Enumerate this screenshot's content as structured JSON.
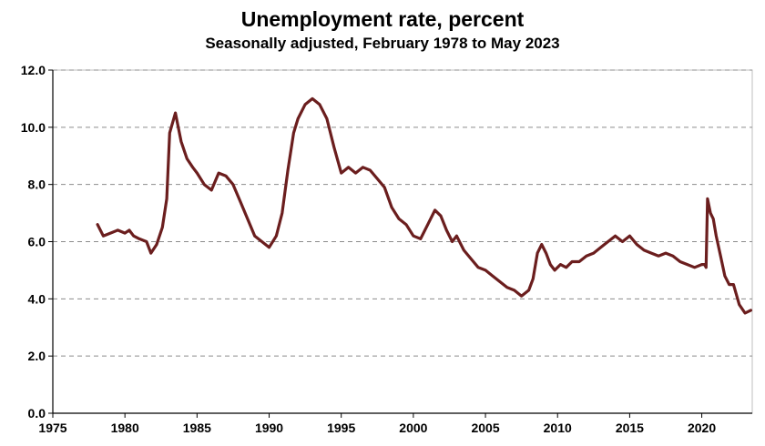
{
  "chart_data": {
    "type": "line",
    "title": "Unemployment rate, percent",
    "subtitle": "Seasonally adjusted, February 1978 to May 2023",
    "xlim": [
      1975,
      2023.5
    ],
    "ylim": [
      0,
      12
    ],
    "x_ticks": [
      1975,
      1980,
      1985,
      1990,
      1995,
      2000,
      2005,
      2010,
      2015,
      2020
    ],
    "y_ticks": [
      0,
      2,
      4,
      6,
      8,
      10,
      12
    ],
    "x_tick_labels": [
      "1975",
      "1980",
      "1985",
      "1990",
      "1995",
      "2000",
      "2005",
      "2010",
      "2015",
      "2020"
    ],
    "y_tick_labels": [
      "0.0",
      "2.0",
      "4.0",
      "6.0",
      "8.0",
      "10.0",
      "12.0"
    ],
    "grid": "horizontal-dashed",
    "line_color": "#6b1e1e",
    "series": [
      {
        "x": [
          1978.1,
          1978.5,
          1979.0,
          1979.5,
          1980.0,
          1980.3,
          1980.6,
          1981.0,
          1981.5,
          1981.8,
          1982.2,
          1982.6,
          1982.9,
          1983.1,
          1983.5,
          1983.9,
          1984.3,
          1984.7,
          1985.0,
          1985.5,
          1986.0,
          1986.5,
          1987.0,
          1987.5,
          1988.0,
          1988.5,
          1989.0,
          1989.5,
          1990.0,
          1990.5,
          1990.9,
          1991.3,
          1991.7,
          1992.0,
          1992.5,
          1993.0,
          1993.5,
          1994.0,
          1994.5,
          1995.0,
          1995.5,
          1996.0,
          1996.5,
          1997.0,
          1997.5,
          1998.0,
          1998.5,
          1999.0,
          1999.5,
          2000.0,
          2000.5,
          2001.0,
          2001.5,
          2001.9,
          2002.3,
          2002.7,
          2003.0,
          2003.5,
          2004.0,
          2004.5,
          2005.0,
          2005.5,
          2006.0,
          2006.5,
          2007.0,
          2007.5,
          2008.0,
          2008.3,
          2008.6,
          2008.9,
          2009.2,
          2009.5,
          2009.8,
          2010.2,
          2010.6,
          2011.0,
          2011.5,
          2012.0,
          2012.5,
          2013.0,
          2013.5,
          2014.0,
          2014.5,
          2015.0,
          2015.5,
          2016.0,
          2016.5,
          2017.0,
          2017.5,
          2018.0,
          2018.5,
          2019.0,
          2019.5,
          2020.0,
          2020.2,
          2020.3,
          2020.4,
          2020.6,
          2020.8,
          2021.0,
          2021.3,
          2021.6,
          2021.9,
          2022.2,
          2022.6,
          2023.0,
          2023.4
        ],
        "y": [
          6.6,
          6.2,
          6.3,
          6.4,
          6.3,
          6.4,
          6.2,
          6.1,
          6.0,
          5.6,
          5.9,
          6.5,
          7.5,
          9.8,
          10.5,
          9.5,
          8.9,
          8.6,
          8.4,
          8.0,
          7.8,
          8.4,
          8.3,
          8.0,
          7.4,
          6.8,
          6.2,
          6.0,
          5.8,
          6.2,
          7.0,
          8.5,
          9.8,
          10.3,
          10.8,
          11.0,
          10.8,
          10.3,
          9.3,
          8.4,
          8.6,
          8.4,
          8.6,
          8.5,
          8.2,
          7.9,
          7.2,
          6.8,
          6.6,
          6.2,
          6.1,
          6.6,
          7.1,
          6.9,
          6.4,
          6.0,
          6.2,
          5.7,
          5.4,
          5.1,
          5.0,
          4.8,
          4.6,
          4.4,
          4.3,
          4.1,
          4.3,
          4.7,
          5.6,
          5.9,
          5.6,
          5.2,
          5.0,
          5.2,
          5.1,
          5.3,
          5.3,
          5.5,
          5.6,
          5.8,
          6.0,
          6.2,
          6.0,
          6.2,
          5.9,
          5.7,
          5.6,
          5.5,
          5.6,
          5.5,
          5.3,
          5.2,
          5.1,
          5.2,
          5.2,
          5.1,
          7.5,
          7.0,
          6.8,
          6.2,
          5.5,
          4.8,
          4.5,
          4.5,
          3.8,
          3.5,
          3.6
        ]
      }
    ]
  }
}
